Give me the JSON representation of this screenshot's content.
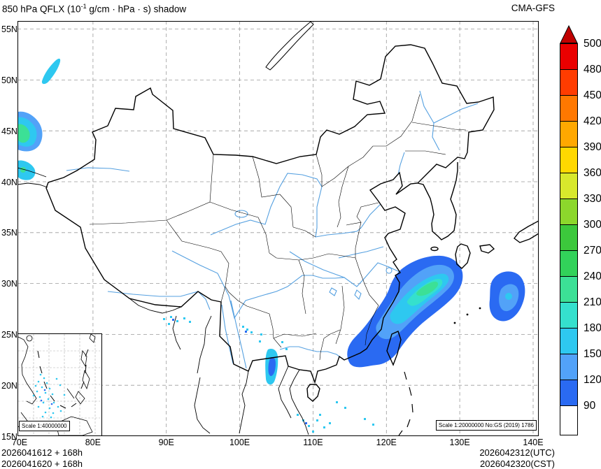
{
  "header": {
    "title_prefix": "850 hPa QFLX (10",
    "title_sup": "-1",
    "title_suffix": " g/cm · hPa · s) shadow",
    "model": "CMA-GFS"
  },
  "axes": {
    "lat": [
      "55N",
      "50N",
      "45N",
      "40N",
      "35N",
      "30N",
      "25N",
      "20N",
      "15N"
    ],
    "lon": [
      "70E",
      "80E",
      "90E",
      "100E",
      "110E",
      "120E",
      "130E",
      "140E"
    ]
  },
  "colorbar": {
    "levels": [
      "500",
      "480",
      "450",
      "420",
      "390",
      "360",
      "330",
      "300",
      "270",
      "240",
      "210",
      "180",
      "150",
      "120",
      "90"
    ],
    "colors_top_to_bottom": [
      "#EA0000",
      "#FF3C00",
      "#FF7800",
      "#FFA800",
      "#FFD800",
      "#D8E82C",
      "#8CD72C",
      "#3CC83C",
      "#32D25A",
      "#3CE096",
      "#35E0CD",
      "#2EC8F0",
      "#52A2F8",
      "#2A6AF2"
    ],
    "arrow_color": "#C00000",
    "below_min_color": "#FFFFFF"
  },
  "footer": {
    "init_line1": "2026041612 + 168h",
    "init_line2": "2026041620 + 168h",
    "valid_line1": "2026042312(UTC)",
    "valid_line2": "2026042320(CST)"
  },
  "map": {
    "scale_note": "Scale 1:20000000 No:GS (2019) 1786",
    "inset_scale_note": "Scale 1:40000000"
  },
  "chart_data": {
    "type": "heatmap",
    "subtype": "filled-contour-weather-map",
    "title": "850 hPa QFLX (10^-1 g/cm · hPa · s) shadow",
    "model": "CMA-GFS",
    "init_time": "2026041612 UTC / 2026041620 CST, forecast +168h",
    "valid_time": "2026042312(UTC) / 2026042320(CST)",
    "lon_range_deg_e": [
      70,
      140
    ],
    "lat_range_deg_n": [
      15,
      55
    ],
    "grid_interval": {
      "lat_deg": 5,
      "lon_deg": 10
    },
    "contour_levels": [
      90,
      120,
      150,
      180,
      210,
      240,
      270,
      300,
      330,
      360,
      390,
      420,
      450,
      480,
      500
    ],
    "legend_position": "right",
    "shaded_regions": [
      {
        "name": "east-china-coast-sea",
        "lon": [
          117,
          128
        ],
        "lat": [
          24,
          32
        ],
        "peak_band": "210-240"
      },
      {
        "name": "sea-southeast-of-japan",
        "lon": [
          134,
          139
        ],
        "lat": [
          26,
          31
        ],
        "peak_band": "150-180"
      },
      {
        "name": "west-xinjiang-border",
        "lon": [
          70,
          74
        ],
        "lat": [
          43,
          47
        ],
        "peak_band": "210-240"
      },
      {
        "name": "west-xinjiang-south",
        "lon": [
          70,
          73
        ],
        "lat": [
          40,
          41.5
        ],
        "peak_band": "180-210"
      },
      {
        "name": "northwest-corner",
        "lon": [
          73,
          76
        ],
        "lat": [
          50,
          52.5
        ],
        "peak_band": "120-150"
      },
      {
        "name": "indochina-north",
        "lon": [
          103,
          105.5
        ],
        "lat": [
          20,
          24
        ],
        "peak_band": "150-180"
      },
      {
        "name": "scattered-south-china-sea",
        "lon": [
          107,
          113
        ],
        "lat": [
          15,
          17.5
        ],
        "peak_band": "90-120"
      },
      {
        "name": "scattered-bengal",
        "lon": [
          89,
          93
        ],
        "lat": [
          25,
          27
        ],
        "peak_band": "90-120"
      },
      {
        "name": "south-china-sea-inset-speckles",
        "lon": [
          106,
          116
        ],
        "lat": [
          5,
          15
        ],
        "peak_band": "90-120"
      }
    ]
  }
}
